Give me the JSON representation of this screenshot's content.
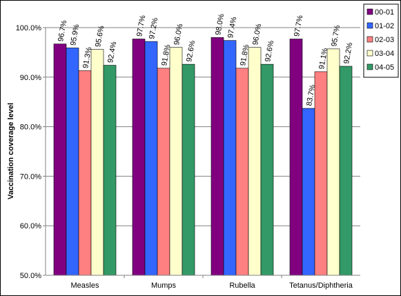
{
  "chart_data": {
    "type": "bar",
    "title": "",
    "ylabel": "Vaccination coverage level",
    "xlabel": "",
    "ylim": [
      50,
      100
    ],
    "y_tick_step": 10,
    "y_tick_labels": [
      "50.0%",
      "60.0%",
      "70.0%",
      "80.0%",
      "90.0%",
      "100.0%"
    ],
    "grid": "horizontal",
    "legend_position": "right",
    "value_label_suffix": "%",
    "categories": [
      "Measles",
      "Mumps",
      "Rubella",
      "Tetanus/Diphtheria"
    ],
    "series": [
      {
        "name": "00-01",
        "color": "#800080",
        "values": [
          96.7,
          97.7,
          98.0,
          97.7
        ]
      },
      {
        "name": "01-02",
        "color": "#3366ff",
        "values": [
          95.9,
          97.2,
          97.4,
          83.7
        ]
      },
      {
        "name": "02-03",
        "color": "#ff8080",
        "values": [
          91.3,
          91.8,
          91.8,
          91.1
        ]
      },
      {
        "name": "03-04",
        "color": "#ffffcc",
        "values": [
          95.6,
          96.0,
          96.0,
          95.7
        ]
      },
      {
        "name": "04-05",
        "color": "#339966",
        "values": [
          92.4,
          92.6,
          92.6,
          92.2
        ]
      }
    ]
  }
}
